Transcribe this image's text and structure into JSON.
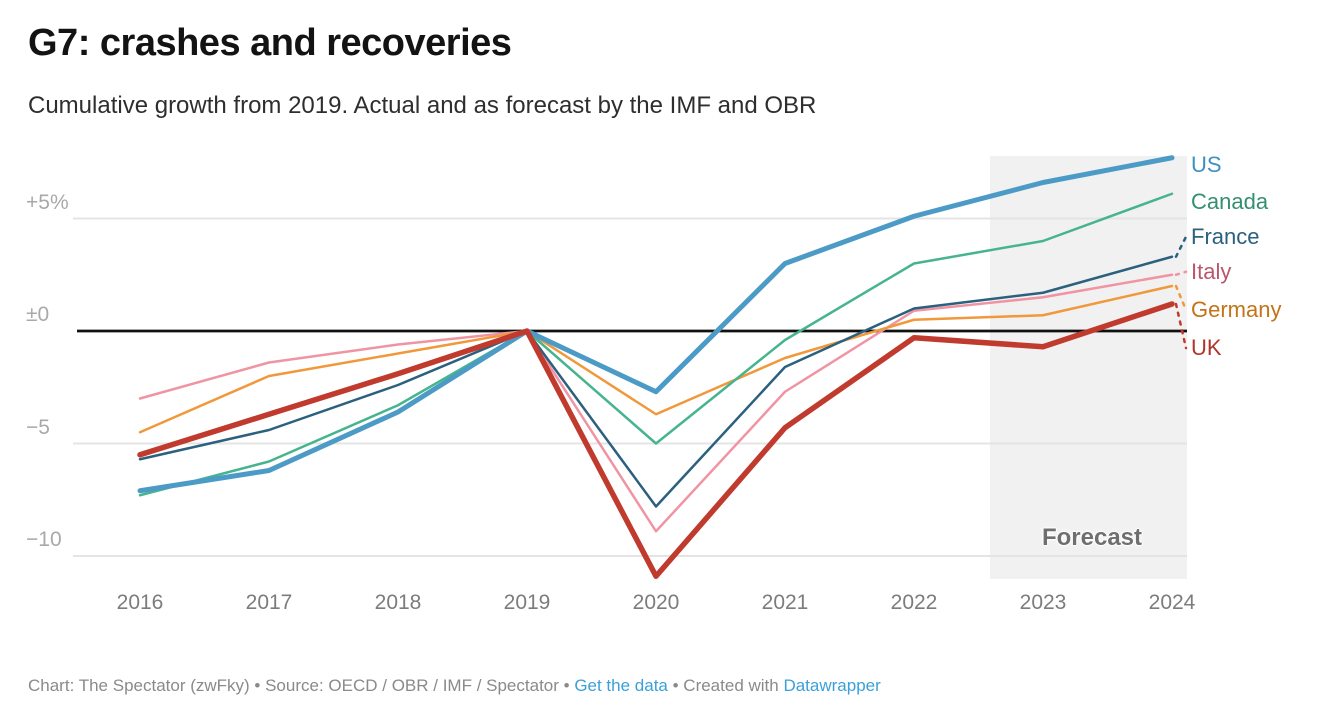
{
  "header": {
    "title": "G7: crashes and recoveries",
    "subtitle": "Cumulative growth from 2019. Actual and as forecast by the IMF and OBR"
  },
  "chart_data": {
    "type": "line",
    "title": "G7: crashes and recoveries",
    "x": [
      2016,
      2017,
      2018,
      2019,
      2020,
      2021,
      2022,
      2023,
      2024
    ],
    "y_unit": "%",
    "baseline_year": 2019,
    "ylim": [
      -12,
      8.5
    ],
    "grid": true,
    "legend_position": "right-of-line-ends",
    "yticks": [
      {
        "value": 5,
        "label": "+5%"
      },
      {
        "value": 0,
        "label": "±0"
      },
      {
        "value": -5,
        "label": "−5"
      },
      {
        "value": -10,
        "label": "−10"
      }
    ],
    "forecast_band": {
      "label": "Forecast",
      "x_range": [
        2022.6,
        2024.1
      ]
    },
    "series": [
      {
        "name": "US",
        "color": "#4c9bc7",
        "label_color": "#3f90c2",
        "line_width": 5,
        "values": [
          -7.1,
          -6.2,
          -3.6,
          0,
          -2.7,
          3.0,
          5.1,
          6.6,
          7.7
        ]
      },
      {
        "name": "Canada",
        "color": "#46b48c",
        "label_color": "#348f70",
        "line_width": 2.5,
        "values": [
          -7.3,
          -5.8,
          -3.3,
          0,
          -5.0,
          -0.4,
          3.0,
          4.0,
          6.1
        ]
      },
      {
        "name": "France",
        "color": "#2b607e",
        "label_color": "#2b607e",
        "line_width": 2.5,
        "values": [
          -5.7,
          -4.4,
          -2.4,
          0,
          -7.8,
          -1.6,
          1.0,
          1.7,
          3.3
        ]
      },
      {
        "name": "Italy",
        "color": "#f094a4",
        "label_color": "#ba5570",
        "line_width": 2.5,
        "values": [
          -3.0,
          -1.4,
          -0.6,
          0,
          -8.9,
          -2.7,
          0.9,
          1.5,
          2.5
        ]
      },
      {
        "name": "Germany",
        "color": "#f1983b",
        "label_color": "#c37318",
        "line_width": 2.5,
        "values": [
          -4.5,
          -2.0,
          -1.0,
          0,
          -3.7,
          -1.2,
          0.5,
          0.7,
          2.0
        ]
      },
      {
        "name": "UK",
        "color": "#c03b2e",
        "label_color": "#b0352b",
        "line_width": 5.5,
        "values": [
          -5.5,
          -3.7,
          -1.9,
          0,
          -10.9,
          -4.3,
          -0.3,
          -0.7,
          1.2
        ]
      }
    ]
  },
  "footer": {
    "parts": [
      {
        "text": "Chart: The Spectator (zwFky) • Source: OECD / OBR / IMF / Spectator • ",
        "is_link": false
      },
      {
        "text": "Get the data",
        "is_link": true
      },
      {
        "text": " • Created with ",
        "is_link": false
      },
      {
        "text": "Datawrapper",
        "is_link": true
      }
    ]
  }
}
